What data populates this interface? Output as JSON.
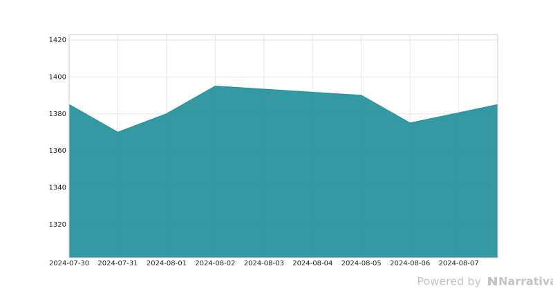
{
  "chart_data": {
    "type": "area",
    "x": [
      "2024-07-30",
      "2024-07-31",
      "2024-08-01",
      "2024-08-02",
      "2024-08-05",
      "2024-08-06",
      "2024-08-07 19:12"
    ],
    "values": [
      1385,
      1370,
      1380,
      1395,
      1390,
      1375,
      1385
    ],
    "color": "#2a939f",
    "xlim": [
      "2024-07-30",
      "2024-08-07 19:12"
    ],
    "xticks": [
      "2024-07-30",
      "2024-07-31",
      "2024-08-01",
      "2024-08-02",
      "2024-08-03",
      "2024-08-04",
      "2024-08-05",
      "2024-08-06",
      "2024-08-07"
    ],
    "ylim": [
      1302,
      1423
    ],
    "yticks": [
      1320,
      1340,
      1360,
      1380,
      1400,
      1420
    ],
    "grid": true
  },
  "footer": {
    "prefix": "Powered by",
    "brand": "Narrativa"
  }
}
